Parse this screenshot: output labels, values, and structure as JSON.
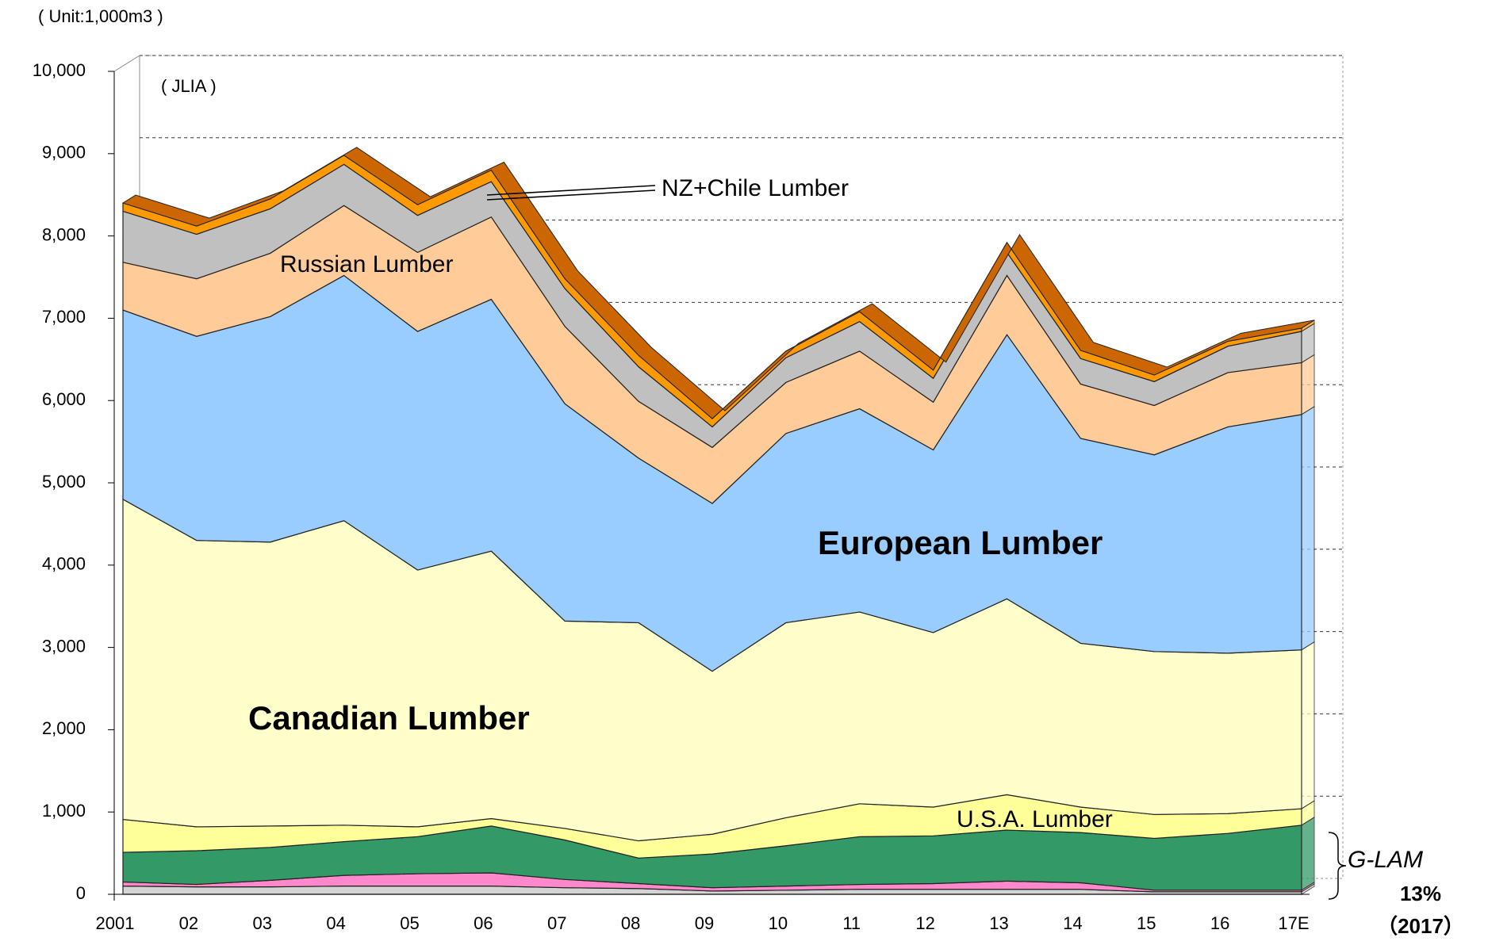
{
  "chart_data": {
    "type": "area",
    "stacked": true,
    "unit_note": "( Unit:1,000m3 )",
    "source": "( JLIA )",
    "categories": [
      "2001",
      "02",
      "03",
      "04",
      "05",
      "06",
      "07",
      "08",
      "09",
      "10",
      "11",
      "12",
      "13",
      "14",
      "15",
      "16",
      "17E"
    ],
    "series": [
      {
        "color": "#d4d4d4",
        "values": [
          100,
          90,
          90,
          100,
          100,
          100,
          80,
          70,
          40,
          50,
          60,
          60,
          60,
          60,
          30,
          30,
          30
        ]
      },
      {
        "color": "#ff88cc",
        "values": [
          50,
          30,
          80,
          130,
          150,
          160,
          100,
          60,
          40,
          50,
          60,
          70,
          100,
          80,
          20,
          20,
          20
        ]
      },
      {
        "color": "#339966",
        "values": [
          360,
          410,
          400,
          410,
          450,
          570,
          480,
          310,
          410,
          490,
          580,
          580,
          620,
          610,
          630,
          690,
          790
        ]
      },
      {
        "name": "U.S.A. Lumber",
        "color": "#ffff99",
        "values": [
          400,
          290,
          260,
          200,
          120,
          90,
          140,
          210,
          240,
          340,
          400,
          350,
          430,
          310,
          290,
          240,
          200
        ]
      },
      {
        "name": "Canadian Lumber",
        "color": "#ffffcc",
        "values": [
          3890,
          3480,
          3450,
          3700,
          3120,
          3250,
          2520,
          2650,
          1980,
          2370,
          2330,
          2120,
          2380,
          1990,
          1980,
          1950,
          1930
        ]
      },
      {
        "name": "European Lumber",
        "color": "#99ccff",
        "values": [
          2300,
          2480,
          2740,
          2980,
          2900,
          3060,
          2640,
          2000,
          2040,
          2300,
          2470,
          2220,
          3210,
          2490,
          2390,
          2750,
          2860
        ]
      },
      {
        "name": "Russian Lumber",
        "color": "#ffcc99",
        "values": [
          580,
          700,
          770,
          850,
          960,
          1000,
          940,
          690,
          680,
          620,
          700,
          580,
          720,
          660,
          600,
          660,
          630
        ]
      },
      {
        "color": "#c0c0c0",
        "values": [
          620,
          540,
          540,
          500,
          450,
          430,
          460,
          420,
          250,
          300,
          360,
          290,
          280,
          310,
          290,
          320,
          380
        ]
      },
      {
        "name": "NZ+Chile Lumber",
        "color": "#ff9900",
        "values": [
          100,
          100,
          120,
          110,
          130,
          140,
          120,
          140,
          100,
          80,
          120,
          100,
          120,
          100,
          80,
          60,
          40
        ]
      }
    ],
    "ylim": [
      0,
      10000
    ],
    "yticks": [
      0,
      {
        "value": 1000,
        "label": "1,000"
      },
      {
        "value": 2000,
        "label": "2,000"
      },
      {
        "value": 3000,
        "label": "3,000"
      },
      {
        "value": 4000,
        "label": "4,000"
      },
      {
        "value": 5000,
        "label": "5,000"
      },
      {
        "value": 6000,
        "label": "6,000"
      },
      {
        "value": 7000,
        "label": "7,000"
      },
      {
        "value": 8000,
        "label": "8,000"
      },
      {
        "value": 9000,
        "label": "9,000"
      },
      {
        "value": 10000,
        "label": "10,000"
      }
    ],
    "grid": true,
    "annotations": {
      "glam": "G-LAM",
      "glam_share": "13%",
      "glam_year": "（2017）"
    }
  }
}
